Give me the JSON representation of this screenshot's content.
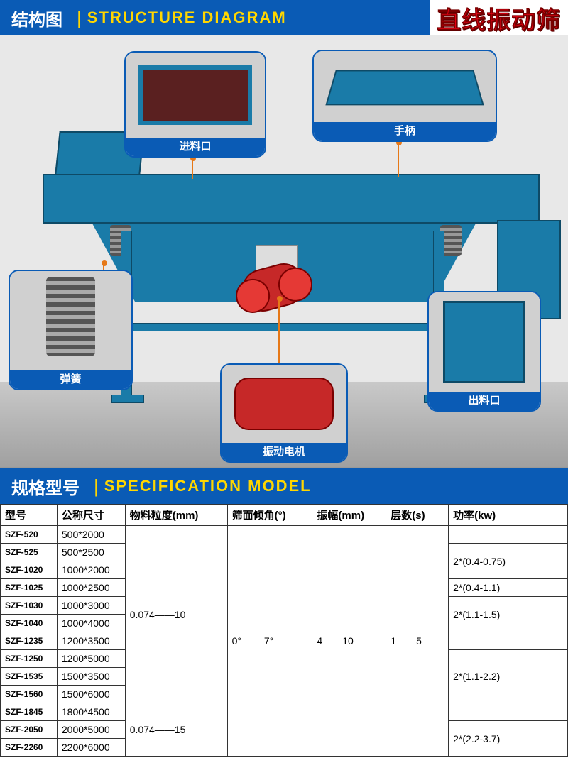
{
  "header": {
    "structure": {
      "cn": "结构图",
      "en": "STRUCTURE DIAGRAM"
    },
    "product_red": "直线振动筛",
    "spec": {
      "cn": "规格型号",
      "en": "SPECIFICATION MODEL"
    }
  },
  "callouts": {
    "inlet": "进料口",
    "handle": "手柄",
    "spring": "弹簧",
    "motor": "振动电机",
    "outlet": "出料口"
  },
  "colors": {
    "header_bg": "#0a5bb5",
    "header_accent": "#ffd600",
    "product_red": "#e60012",
    "machine_blue": "#1a7ba8",
    "motor_red": "#c62828",
    "leader": "#e67817"
  },
  "spec_table": {
    "columns": [
      "型号",
      "公称尺寸",
      "物料粒度(mm)",
      "筛面倾角(°)",
      "振幅(mm)",
      "层数(s)",
      "功率(kw)"
    ],
    "column_widths_pct": [
      10,
      12,
      18,
      15,
      13,
      11,
      21
    ],
    "rows": [
      {
        "model": "SZF-520",
        "size": "500*2000"
      },
      {
        "model": "SZF-525",
        "size": "500*2500"
      },
      {
        "model": "SZF-1020",
        "size": "1000*2000"
      },
      {
        "model": "SZF-1025",
        "size": "1000*2500"
      },
      {
        "model": "SZF-1030",
        "size": "1000*3000"
      },
      {
        "model": "SZF-1040",
        "size": "1000*4000"
      },
      {
        "model": "SZF-1235",
        "size": "1200*3500"
      },
      {
        "model": "SZF-1250",
        "size": "1200*5000"
      },
      {
        "model": "SZF-1535",
        "size": "1500*3500"
      },
      {
        "model": "SZF-1560",
        "size": "1500*6000"
      },
      {
        "model": "SZF-1845",
        "size": "1800*4500"
      },
      {
        "model": "SZF-2050",
        "size": "2000*5000"
      },
      {
        "model": "SZF-2260",
        "size": "2200*6000"
      }
    ],
    "particle_groups": [
      {
        "value": "0.074——10",
        "span": 10
      },
      {
        "value": "0.074——15",
        "span": 3
      }
    ],
    "angle": {
      "value": "0°—— 7°",
      "span": 13
    },
    "amplitude": {
      "value": "4——10",
      "span": 13
    },
    "layers": {
      "value": "1——5",
      "span": 13
    },
    "power_groups": [
      {
        "value": "",
        "span": 1
      },
      {
        "value": "2*(0.4-0.75)",
        "span": 2
      },
      {
        "value": "2*(0.4-1.1)",
        "span": 1
      },
      {
        "value": "2*(1.1-1.5)",
        "span": 2
      },
      {
        "value": "",
        "span": 1
      },
      {
        "value": "2*(1.1-2.2)",
        "span": 3
      },
      {
        "value": "",
        "span": 1
      },
      {
        "value": "2*(2.2-3.7)",
        "span": 2
      }
    ]
  }
}
